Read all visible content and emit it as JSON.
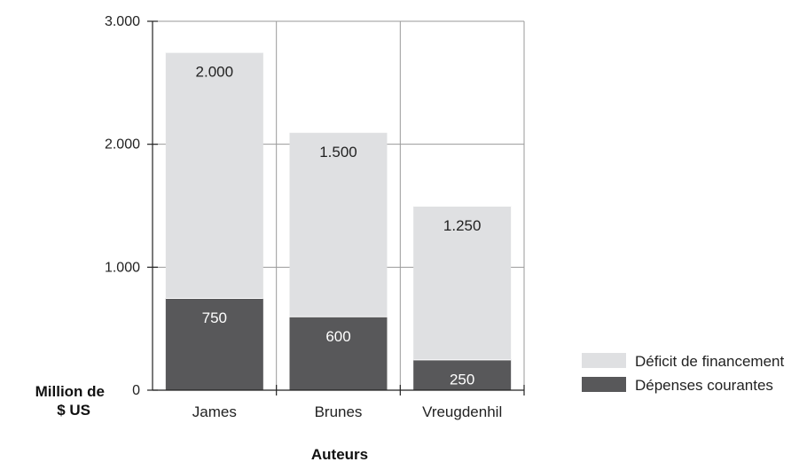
{
  "chart_data": {
    "type": "bar",
    "stacked": true,
    "categories": [
      "James",
      "Brunes",
      "Vreugdenhil"
    ],
    "series": [
      {
        "name": "Dépenses courantes",
        "values": [
          750,
          600,
          250
        ],
        "color": "#58585a",
        "label_color": "#ffffff"
      },
      {
        "name": "Déficit de financement",
        "values": [
          2000,
          1500,
          1250
        ],
        "color": "#dfe0e2",
        "label_color": "#222222"
      }
    ],
    "data_labels": [
      [
        "750",
        "600",
        "250"
      ],
      [
        "2.000",
        "1.500",
        "1.250"
      ]
    ],
    "y_ticks": [
      {
        "value": 0,
        "label": "0"
      },
      {
        "value": 1000,
        "label": "1.000"
      },
      {
        "value": 2000,
        "label": "2.000"
      },
      {
        "value": 3000,
        "label": "3.000"
      }
    ],
    "ylim": [
      0,
      3000
    ],
    "ylabel_lines": [
      "Million de",
      "$ US"
    ],
    "xlabel": "Auteurs",
    "legend_position": "right",
    "grid": true
  }
}
